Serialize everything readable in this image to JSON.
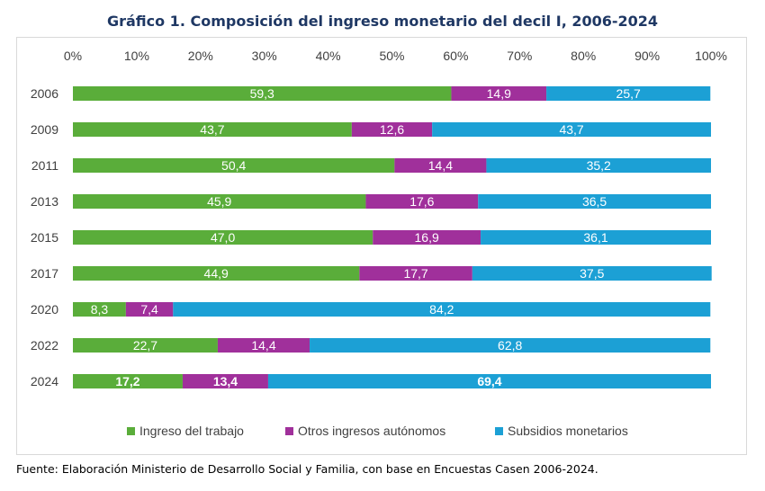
{
  "title": "Gráfico 1. Composición del ingreso monetario del decil I, 2006-2024",
  "source": "Fuente: Elaboración Ministerio de Desarrollo Social y Familia, con base en Encuestas Casen 2006-2024.",
  "chart_data": {
    "type": "bar",
    "orientation": "horizontal",
    "stacked": true,
    "percent_stacked": true,
    "categories": [
      "2006",
      "2009",
      "2011",
      "2013",
      "2015",
      "2017",
      "2020",
      "2022",
      "2024"
    ],
    "series": [
      {
        "name": "Ingreso del trabajo",
        "color": "#5aad3a",
        "values": [
          59.3,
          43.7,
          50.4,
          45.9,
          47.0,
          44.9,
          8.3,
          22.7,
          17.2
        ],
        "labels": [
          "59,3",
          "43,7",
          "50,4",
          "45,9",
          "47,0",
          "44,9",
          "8,3",
          "22,7",
          "17,2"
        ]
      },
      {
        "name": "Otros ingresos autónomos",
        "color": "#a0309b",
        "values": [
          14.9,
          12.6,
          14.4,
          17.6,
          16.9,
          17.7,
          7.4,
          14.4,
          13.4
        ],
        "labels": [
          "14,9",
          "12,6",
          "14,4",
          "17,6",
          "16,9",
          "17,7",
          "7,4",
          "14,4",
          "13,4"
        ]
      },
      {
        "name": "Subsidios monetarios",
        "color": "#1ca0d5",
        "values": [
          25.7,
          43.7,
          35.2,
          36.5,
          36.1,
          37.5,
          84.2,
          62.8,
          69.4
        ],
        "labels": [
          "25,7",
          "43,7",
          "35,2",
          "36,5",
          "36,1",
          "37,5",
          "84,2",
          "62,8",
          "69,4"
        ]
      }
    ],
    "bold_categories": [
      "2024"
    ],
    "x_ticks": [
      "0%",
      "10%",
      "20%",
      "30%",
      "40%",
      "50%",
      "60%",
      "70%",
      "80%",
      "90%",
      "100%"
    ],
    "xlim": [
      0,
      100
    ],
    "x_axis_position": "top",
    "grid": false,
    "legend_position": "bottom"
  }
}
